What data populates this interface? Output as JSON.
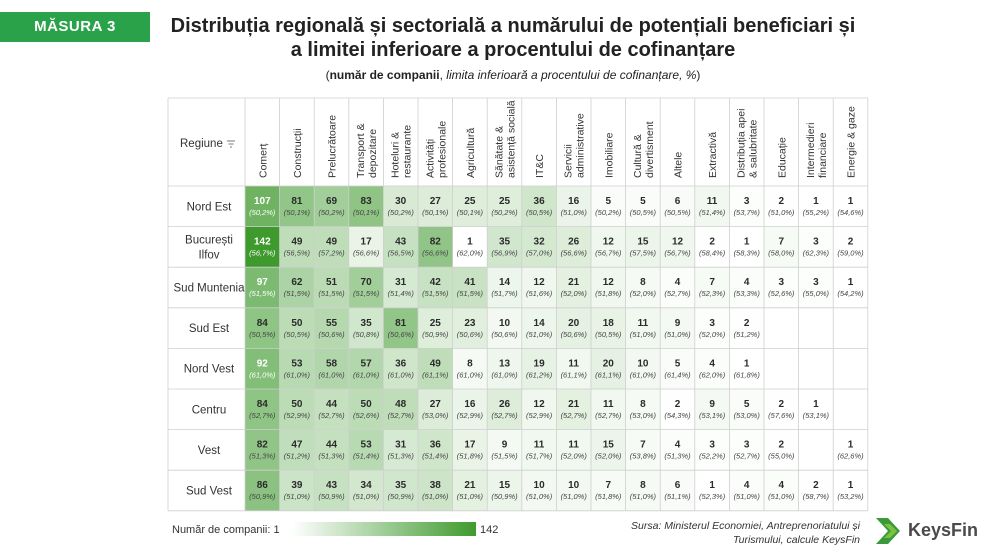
{
  "badge": "MĂSURA 3",
  "title": "Distribuția regională și sectorială a numărului de potențiali beneficiari și a limitei inferioare a procentului de cofinanțare",
  "subtitle": {
    "open": "(",
    "bold": "număr de companii",
    "sep": ", ",
    "italic": "limita inferioară a procentului de cofinanțare, %",
    "close": ")"
  },
  "legend": {
    "min_label": "Număr de companii: 1",
    "max_label": "142",
    "min": 1,
    "max": 142
  },
  "source": {
    "line1": "Sursa: Ministerul Economiei, Antreprenoriatului și",
    "line2": "Turismului, calcule KeysFin"
  },
  "logo": {
    "text": "KeysFin",
    "icon": "keysfin-chevron-logo"
  },
  "colors": {
    "accent": "#2aa24a",
    "scale_low": "#ffffff",
    "scale_high": "#3f9a2e",
    "grid": "#cfcfcf"
  },
  "chart_data": {
    "type": "heatmap",
    "row_header": "Regiune",
    "filter_icon": "filter-icon",
    "columns": [
      [
        "Comerț"
      ],
      [
        "Construcții"
      ],
      [
        "Prelucrătoare"
      ],
      [
        "Transport &",
        "depozitare"
      ],
      [
        "Hoteluri &",
        "restaurante"
      ],
      [
        "Activități",
        "profesionale"
      ],
      [
        "Agricultură"
      ],
      [
        "Sănătate &",
        "asistență socială"
      ],
      [
        "IT&C"
      ],
      [
        "Servicii",
        "administrative"
      ],
      [
        "Imobiliare"
      ],
      [
        "Cultură &",
        "divertisment"
      ],
      [
        "Altele"
      ],
      [
        "Extractivă"
      ],
      [
        "Distribuția apei",
        "& salubritate"
      ],
      [
        "Educație"
      ],
      [
        "Intermedieri",
        "financiare"
      ],
      [
        "Energie & gaze"
      ]
    ],
    "rows": [
      {
        "region": [
          "Nord Est"
        ],
        "values": [
          107,
          81,
          69,
          83,
          30,
          27,
          25,
          25,
          36,
          16,
          5,
          5,
          6,
          11,
          3,
          2,
          1,
          1
        ],
        "pct": [
          "(50,2%)",
          "(50,1%)",
          "(50,2%)",
          "(50,1%)",
          "(50,2%)",
          "(50,1%)",
          "(50,1%)",
          "(50,2%)",
          "(50,5%)",
          "(51,0%)",
          "(50,2%)",
          "(50,5%)",
          "(50,5%)",
          "(51,4%)",
          "(53,7%)",
          "(51,0%)",
          "(55,2%)",
          "(54,6%)"
        ]
      },
      {
        "region": [
          "București",
          "Ilfov"
        ],
        "values": [
          142,
          49,
          49,
          17,
          43,
          82,
          1,
          35,
          32,
          26,
          12,
          15,
          12,
          2,
          1,
          7,
          3,
          2
        ],
        "pct": [
          "(56,7%)",
          "(56,5%)",
          "(57,2%)",
          "(56,6%)",
          "(56,5%)",
          "(56,6%)",
          "(62,0%)",
          "(56,9%)",
          "(57,0%)",
          "(56,6%)",
          "(56,7%)",
          "(57,5%)",
          "(56,7%)",
          "(58,4%)",
          "(58,3%)",
          "(58,0%)",
          "(62,3%)",
          "(59,0%)"
        ]
      },
      {
        "region": [
          "Sud Muntenia"
        ],
        "values": [
          97,
          62,
          51,
          70,
          31,
          42,
          41,
          14,
          12,
          21,
          12,
          8,
          4,
          7,
          4,
          3,
          3,
          1
        ],
        "pct": [
          "(51,5%)",
          "(51,5%)",
          "(51,5%)",
          "(51,5%)",
          "(51,4%)",
          "(51,5%)",
          "(51,5%)",
          "(51,7%)",
          "(51,6%)",
          "(52,0%)",
          "(51,8%)",
          "(52,0%)",
          "(52,7%)",
          "(52,3%)",
          "(53,3%)",
          "(52,6%)",
          "(55,0%)",
          "(54,2%)"
        ]
      },
      {
        "region": [
          "Sud Est"
        ],
        "values": [
          84,
          50,
          55,
          35,
          81,
          25,
          23,
          10,
          14,
          20,
          18,
          11,
          9,
          3,
          2,
          null,
          null,
          null
        ],
        "pct": [
          "(50,5%)",
          "(50,5%)",
          "(50,6%)",
          "(50,8%)",
          "(50,6%)",
          "(50,9%)",
          "(50,6%)",
          "(50,6%)",
          "(51,0%)",
          "(50,6%)",
          "(50,5%)",
          "(51,0%)",
          "(51,0%)",
          "(52,0%)",
          "(51,2%)",
          "",
          "",
          ""
        ]
      },
      {
        "region": [
          "Nord Vest"
        ],
        "values": [
          92,
          53,
          58,
          57,
          36,
          49,
          8,
          13,
          19,
          11,
          20,
          10,
          5,
          4,
          1,
          null,
          null,
          null
        ],
        "pct": [
          "(61,0%)",
          "(61,0%)",
          "(61,0%)",
          "(61,0%)",
          "(61,0%)",
          "(61,1%)",
          "(61,0%)",
          "(61,0%)",
          "(61,2%)",
          "(61,1%)",
          "(61,1%)",
          "(61,0%)",
          "(61,4%)",
          "(62,0%)",
          "(61,8%)",
          "",
          "",
          ""
        ]
      },
      {
        "region": [
          "Centru"
        ],
        "values": [
          84,
          50,
          44,
          50,
          48,
          27,
          16,
          26,
          12,
          21,
          11,
          8,
          2,
          9,
          5,
          2,
          1,
          null
        ],
        "pct": [
          "(52,7%)",
          "(52,9%)",
          "(52,7%)",
          "(52,6%)",
          "(52,7%)",
          "(53,0%)",
          "(52,9%)",
          "(52,7%)",
          "(52,9%)",
          "(52,7%)",
          "(52,7%)",
          "(53,0%)",
          "(54,3%)",
          "(53,1%)",
          "(53,0%)",
          "(57,6%)",
          "(53,1%)",
          ""
        ]
      },
      {
        "region": [
          "Vest"
        ],
        "values": [
          82,
          47,
          44,
          53,
          31,
          36,
          17,
          9,
          11,
          11,
          15,
          7,
          4,
          3,
          3,
          2,
          null,
          1
        ],
        "pct": [
          "(51,3%)",
          "(51,2%)",
          "(51,3%)",
          "(51,4%)",
          "(51,3%)",
          "(51,4%)",
          "(51,8%)",
          "(51,5%)",
          "(51,7%)",
          "(52,0%)",
          "(52,0%)",
          "(53,8%)",
          "(51,3%)",
          "(52,2%)",
          "(52,7%)",
          "(55,0%)",
          "",
          "(62,6%)"
        ]
      },
      {
        "region": [
          "Sud Vest"
        ],
        "values": [
          86,
          39,
          43,
          34,
          35,
          38,
          21,
          15,
          10,
          10,
          7,
          8,
          6,
          1,
          4,
          4,
          2,
          1
        ],
        "pct": [
          "(50,9%)",
          "(51,0%)",
          "(50,9%)",
          "(51,0%)",
          "(50,9%)",
          "(51,0%)",
          "(51,0%)",
          "(50,9%)",
          "(51,0%)",
          "(51,0%)",
          "(51,8%)",
          "(51,0%)",
          "(51,1%)",
          "(52,3%)",
          "(51,0%)",
          "(51,0%)",
          "(58,7%)",
          "(53,2%)"
        ]
      }
    ]
  }
}
